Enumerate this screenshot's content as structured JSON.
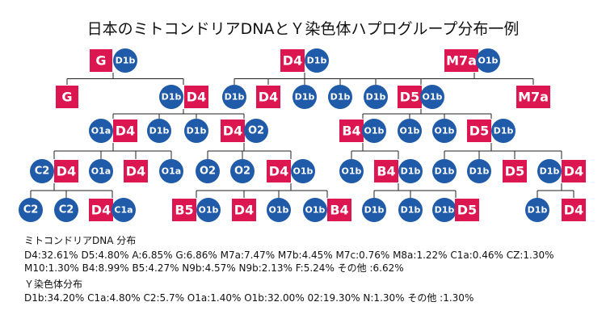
{
  "title": "日本のミトコンドリアDNAとＹ染色体ハプログループ分布一例",
  "nodes": [
    {
      "mt": "G"
    },
    {
      "y": "D1b"
    },
    {
      "mt": "D4"
    },
    {
      "y": "D1b"
    },
    {
      "mt": "M7a"
    },
    {
      "y": "O1b"
    },
    {
      "mt": "G"
    },
    {
      "y": "D1b"
    },
    {
      "mt": "D4"
    },
    {
      "y": "D1b"
    },
    {
      "mt": "D4"
    },
    {
      "y": "D1b"
    },
    {
      "y": "D1b"
    },
    {
      "y": "D1b"
    },
    {
      "mt": "D5"
    },
    {
      "y": "O1b"
    },
    {
      "mt": "M7a"
    },
    {
      "y": "O1a"
    },
    {
      "mt": "D4"
    },
    {
      "y": "D1b"
    },
    {
      "y": "D1b"
    },
    {
      "mt": "D4"
    },
    {
      "y": "O2"
    },
    {
      "mt": "B4"
    },
    {
      "y": "O1b"
    },
    {
      "y": "O1b"
    },
    {
      "y": "O1b"
    },
    {
      "mt": "D5"
    },
    {
      "y": "D1b"
    },
    {
      "y": "C2"
    },
    {
      "mt": "D4"
    },
    {
      "y": "O1a"
    },
    {
      "mt": "D4"
    },
    {
      "y": "O1a"
    },
    {
      "y": "O2"
    },
    {
      "y": "O2"
    },
    {
      "mt": "D4"
    },
    {
      "y": "O1b"
    },
    {
      "y": "O1b"
    },
    {
      "mt": "B4"
    },
    {
      "y": "D1b"
    },
    {
      "y": "D1b"
    },
    {
      "y": "D1b"
    },
    {
      "mt": "D5"
    },
    {
      "y": "D1b"
    },
    {
      "mt": "D4"
    },
    {
      "y": "C2"
    },
    {
      "y": "C2"
    },
    {
      "mt": "D4"
    },
    {
      "y": "C1a"
    },
    {
      "mt": "B5"
    },
    {
      "y": "O1b"
    },
    {
      "mt": "D4"
    },
    {
      "y": "O1b"
    },
    {
      "y": "O1b"
    },
    {
      "mt": "B4"
    },
    {
      "y": "D1b"
    },
    {
      "y": "D1b"
    },
    {
      "y": "D1b"
    },
    {
      "mt": "D5"
    },
    {
      "y": "D1b"
    },
    {
      "mt": "D4"
    }
  ],
  "mt_heading": "ミトコンドリアDNA 分布",
  "mt_lines": [
    "D4:32.61% D5:4.80% A:6.85% G:6.86% M7a:7.47% M7b:4.45% M7c:0.76% M8a:1.22% C1a:0.46% CZ:1.30%",
    "M10:1.30% B4:8.99% B5:4.27% N9b:4.57% N9b:2.13% F:5.24% その他 :6.62%"
  ],
  "y_heading": "Ｙ染色体分布",
  "y_lines": [
    "D1b:34.20% C1a:4.80% C2:5.7% O1a:1.40% O1b:32.00% 02:19.30% N:1.30% その他 :1.30%"
  ]
}
